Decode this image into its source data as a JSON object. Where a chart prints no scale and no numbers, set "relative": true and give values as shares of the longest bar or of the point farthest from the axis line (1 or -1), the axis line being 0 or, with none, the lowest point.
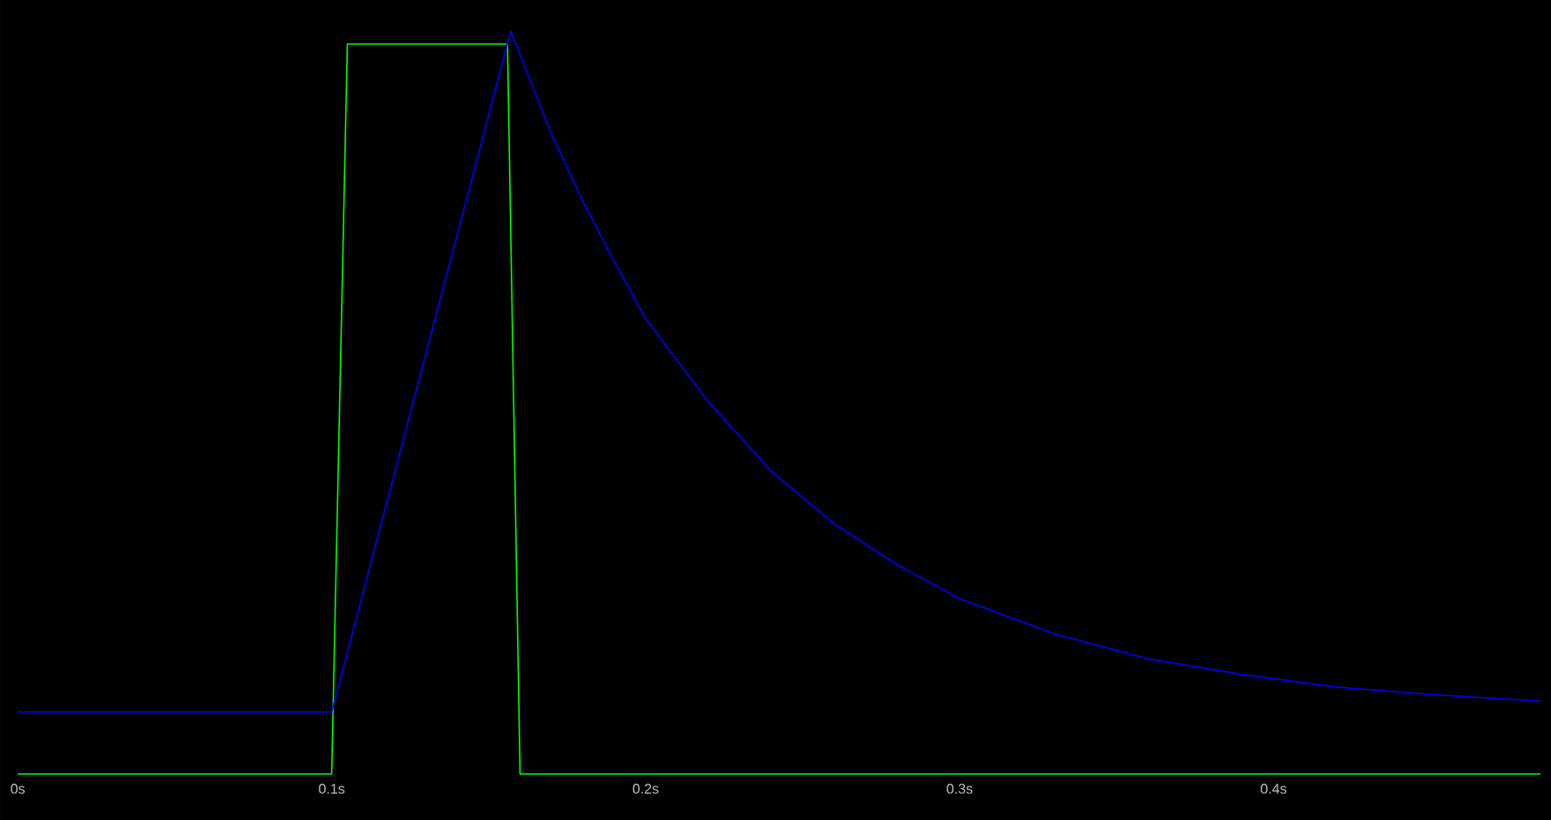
{
  "chart_data": {
    "type": "line",
    "relative": true,
    "xlim": [
      0,
      0.485
    ],
    "xticks": [
      {
        "value": 0,
        "label": "0s"
      },
      {
        "value": 0.1,
        "label": "0.1s"
      },
      {
        "value": 0.2,
        "label": "0.2s"
      },
      {
        "value": 0.3,
        "label": "0.3s"
      },
      {
        "value": 0.4,
        "label": "0.4s"
      }
    ],
    "grid": false,
    "marker": "none",
    "line_style": "solid",
    "series": [
      {
        "color": "#00ff00",
        "x": [
          0,
          0.1,
          0.105,
          0.156,
          0.16,
          0.485
        ],
        "values": [
          0,
          0,
          0.983,
          0.983,
          0,
          0
        ]
      },
      {
        "color": "#0000ff",
        "x": [
          0,
          0.1,
          0.157,
          0.17,
          0.18,
          0.19,
          0.2,
          0.22,
          0.24,
          0.26,
          0.28,
          0.3,
          0.33,
          0.36,
          0.39,
          0.42,
          0.45,
          0.485
        ],
        "values": [
          0.0835,
          0.0835,
          1,
          0.862,
          0.771,
          0.69,
          0.613,
          0.501,
          0.408,
          0.337,
          0.282,
          0.236,
          0.189,
          0.155,
          0.134,
          0.117,
          0.107,
          0.098
        ]
      }
    ]
  }
}
